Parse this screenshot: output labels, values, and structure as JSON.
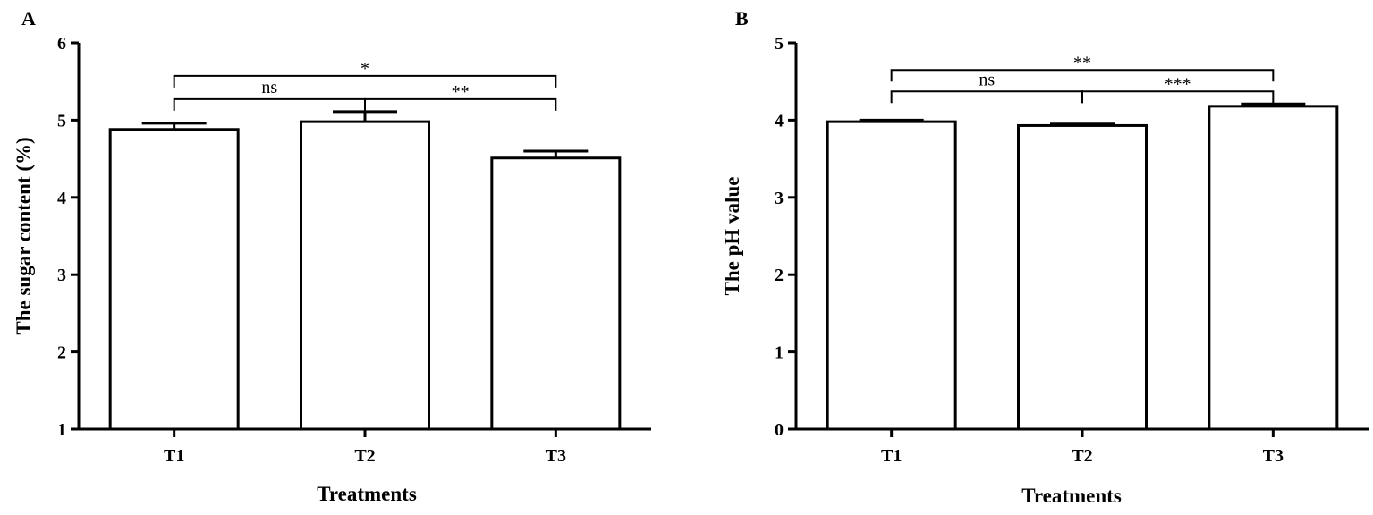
{
  "chart_data": [
    {
      "panel": "A",
      "type": "bar",
      "title": "",
      "xlabel": "Treatments",
      "ylabel": "The sugar content (%)",
      "categories": [
        "T1",
        "T2",
        "T3"
      ],
      "values": [
        4.88,
        4.98,
        4.51
      ],
      "errors": [
        0.08,
        0.13,
        0.09
      ],
      "ylim": [
        1,
        6
      ],
      "yticks": [
        1,
        2,
        3,
        4,
        5,
        6
      ],
      "grid": false,
      "legend": "none",
      "comparisons": [
        {
          "from": "T1",
          "to": "T3",
          "label": "*",
          "tier": 1
        },
        {
          "from": "T1",
          "to": "T2",
          "label": "ns",
          "tier": 0
        },
        {
          "from": "T2",
          "to": "T3",
          "label": "**",
          "tier": 0
        }
      ]
    },
    {
      "panel": "B",
      "type": "bar",
      "title": "",
      "xlabel": "Treatments",
      "ylabel": "The pH value",
      "categories": [
        "T1",
        "T2",
        "T3"
      ],
      "values": [
        3.98,
        3.93,
        4.18
      ],
      "errors": [
        0.02,
        0.02,
        0.03
      ],
      "ylim": [
        0,
        5
      ],
      "yticks": [
        0,
        1,
        2,
        3,
        4,
        5
      ],
      "grid": false,
      "legend": "none",
      "comparisons": [
        {
          "from": "T1",
          "to": "T3",
          "label": "**",
          "tier": 1
        },
        {
          "from": "T1",
          "to": "T2",
          "label": "ns",
          "tier": 0
        },
        {
          "from": "T2",
          "to": "T3",
          "label": "***",
          "tier": 0
        }
      ]
    }
  ],
  "colors": {
    "bar_fill": "#ffffff",
    "stroke": "#000000"
  }
}
